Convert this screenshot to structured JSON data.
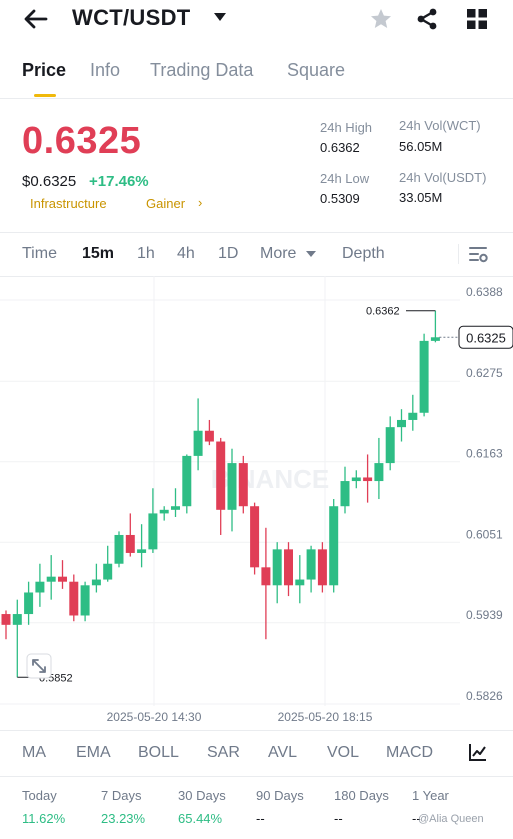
{
  "header": {
    "pair": "WCT/USDT",
    "icons": [
      "back-arrow-icon",
      "star-icon",
      "share-icon",
      "grid-icon"
    ]
  },
  "tabs": [
    {
      "label": "Price",
      "active": true
    },
    {
      "label": "Info",
      "active": false
    },
    {
      "label": "Trading Data",
      "active": false
    },
    {
      "label": "Square",
      "active": false
    }
  ],
  "ticker": {
    "last_price": "0.6325",
    "usd_price": "$0.6325",
    "change": "+17.46%",
    "tags": [
      "Infrastructure",
      "Gainer"
    ],
    "tag_chevron": "›",
    "high_label": "24h High",
    "high_value": "0.6362",
    "low_label": "24h Low",
    "low_value": "0.5309",
    "vol_base_label": "24h Vol(WCT)",
    "vol_base_value": "56.05M",
    "vol_quote_label": "24h Vol(USDT)",
    "vol_quote_value": "33.05M",
    "colors": {
      "down": "#e03e56",
      "up": "#2ebd85",
      "accent": "#f0b90b"
    }
  },
  "intervals": [
    {
      "label": "Time",
      "active": false
    },
    {
      "label": "15m",
      "active": true
    },
    {
      "label": "1h",
      "active": false
    },
    {
      "label": "4h",
      "active": false
    },
    {
      "label": "1D",
      "active": false
    },
    {
      "label": "More",
      "active": false
    },
    {
      "label": "Depth",
      "active": false
    }
  ],
  "chart_data": {
    "type": "candlestick",
    "watermark": "BINANCE",
    "y_ticks": [
      "0.6388",
      "0.6275",
      "0.6163",
      "0.6051",
      "0.5939",
      "0.5826"
    ],
    "ylim": [
      0.5826,
      0.6388
    ],
    "x_ticks": [
      "2025-05-20 14:30",
      "2025-05-20 18:15"
    ],
    "current_price_label": "0.6325",
    "high_marker": "0.6362",
    "low_marker": "0.5852",
    "candles": [
      {
        "o": 0.594,
        "h": 0.5945,
        "l": 0.5905,
        "c": 0.5925
      },
      {
        "o": 0.5925,
        "h": 0.596,
        "l": 0.5852,
        "c": 0.594
      },
      {
        "o": 0.594,
        "h": 0.5985,
        "l": 0.5925,
        "c": 0.597
      },
      {
        "o": 0.597,
        "h": 0.601,
        "l": 0.595,
        "c": 0.5985
      },
      {
        "o": 0.5985,
        "h": 0.6022,
        "l": 0.596,
        "c": 0.5992
      },
      {
        "o": 0.5992,
        "h": 0.6015,
        "l": 0.5975,
        "c": 0.5985
      },
      {
        "o": 0.5985,
        "h": 0.5995,
        "l": 0.593,
        "c": 0.5938
      },
      {
        "o": 0.5938,
        "h": 0.5985,
        "l": 0.593,
        "c": 0.598
      },
      {
        "o": 0.598,
        "h": 0.601,
        "l": 0.597,
        "c": 0.5988
      },
      {
        "o": 0.5988,
        "h": 0.6035,
        "l": 0.5985,
        "c": 0.601
      },
      {
        "o": 0.601,
        "h": 0.6055,
        "l": 0.6005,
        "c": 0.605
      },
      {
        "o": 0.605,
        "h": 0.608,
        "l": 0.602,
        "c": 0.6025
      },
      {
        "o": 0.6025,
        "h": 0.6065,
        "l": 0.6005,
        "c": 0.603
      },
      {
        "o": 0.603,
        "h": 0.6115,
        "l": 0.6025,
        "c": 0.608
      },
      {
        "o": 0.608,
        "h": 0.609,
        "l": 0.607,
        "c": 0.6085
      },
      {
        "o": 0.6085,
        "h": 0.6115,
        "l": 0.6075,
        "c": 0.609
      },
      {
        "o": 0.609,
        "h": 0.6162,
        "l": 0.608,
        "c": 0.616
      },
      {
        "o": 0.616,
        "h": 0.624,
        "l": 0.614,
        "c": 0.6195
      },
      {
        "o": 0.6195,
        "h": 0.621,
        "l": 0.6175,
        "c": 0.618
      },
      {
        "o": 0.618,
        "h": 0.6185,
        "l": 0.605,
        "c": 0.6085
      },
      {
        "o": 0.6085,
        "h": 0.617,
        "l": 0.6055,
        "c": 0.615
      },
      {
        "o": 0.615,
        "h": 0.616,
        "l": 0.608,
        "c": 0.609
      },
      {
        "o": 0.609,
        "h": 0.6095,
        "l": 0.5995,
        "c": 0.6005
      },
      {
        "o": 0.6005,
        "h": 0.606,
        "l": 0.5905,
        "c": 0.598
      },
      {
        "o": 0.598,
        "h": 0.604,
        "l": 0.5955,
        "c": 0.603
      },
      {
        "o": 0.603,
        "h": 0.604,
        "l": 0.5965,
        "c": 0.598
      },
      {
        "o": 0.598,
        "h": 0.6022,
        "l": 0.5955,
        "c": 0.5988
      },
      {
        "o": 0.5988,
        "h": 0.6035,
        "l": 0.597,
        "c": 0.603
      },
      {
        "o": 0.603,
        "h": 0.604,
        "l": 0.597,
        "c": 0.598
      },
      {
        "o": 0.598,
        "h": 0.61,
        "l": 0.597,
        "c": 0.609
      },
      {
        "o": 0.609,
        "h": 0.6145,
        "l": 0.608,
        "c": 0.6125
      },
      {
        "o": 0.6125,
        "h": 0.614,
        "l": 0.6115,
        "c": 0.613
      },
      {
        "o": 0.613,
        "h": 0.6162,
        "l": 0.6095,
        "c": 0.6125
      },
      {
        "o": 0.6125,
        "h": 0.6185,
        "l": 0.61,
        "c": 0.615
      },
      {
        "o": 0.615,
        "h": 0.6215,
        "l": 0.614,
        "c": 0.62
      },
      {
        "o": 0.62,
        "h": 0.6225,
        "l": 0.618,
        "c": 0.621
      },
      {
        "o": 0.621,
        "h": 0.6245,
        "l": 0.6195,
        "c": 0.622
      },
      {
        "o": 0.622,
        "h": 0.633,
        "l": 0.6215,
        "c": 0.632
      },
      {
        "o": 0.632,
        "h": 0.6362,
        "l": 0.6318,
        "c": 0.6325
      }
    ]
  },
  "indicators": [
    "MA",
    "EMA",
    "BOLL",
    "SAR",
    "AVL",
    "VOL",
    "MACD"
  ],
  "performance": [
    {
      "label": "Today",
      "value": "11.62%"
    },
    {
      "label": "7 Days",
      "value": "23.23%"
    },
    {
      "label": "30 Days",
      "value": "65.44%"
    },
    {
      "label": "90 Days",
      "value": "--"
    },
    {
      "label": "180 Days",
      "value": "--"
    },
    {
      "label": "1 Year",
      "value": "--"
    }
  ],
  "credit": "@Alia Queen"
}
